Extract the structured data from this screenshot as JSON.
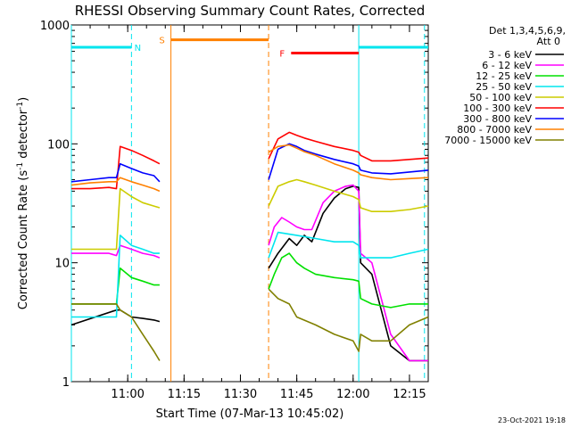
{
  "chart_data": {
    "type": "line",
    "title": "RHESSI Observing Summary Count Rates, Corrected",
    "xlabel": "Start Time (07-Mar-13 10:45:02)",
    "ylabel": "Corrected Count Rate (s⁻¹ detector⁻¹)",
    "ylabel_parts": [
      "Corrected Count Rate (s",
      "-1",
      " detector",
      "-1",
      ")"
    ],
    "y_scale": "log",
    "ylim": [
      1,
      1000
    ],
    "y_ticks": [
      {
        "value": 1,
        "label": "1"
      },
      {
        "value": 10,
        "label": "10"
      },
      {
        "value": 100,
        "label": "100"
      },
      {
        "value": 1000,
        "label": "1000"
      }
    ],
    "xlim_minutes": [
      0,
      95
    ],
    "x_ticks": [
      {
        "min": 15,
        "label": "11:00"
      },
      {
        "min": 30,
        "label": "11:15"
      },
      {
        "min": 45,
        "label": "11:30"
      },
      {
        "min": 60,
        "label": "11:45"
      },
      {
        "min": 75,
        "label": "12:00"
      },
      {
        "min": 90,
        "label": "12:15"
      }
    ],
    "legend": {
      "placement": "right",
      "header": [
        "Det 1,3,4,5,6,9,",
        "Att 0"
      ],
      "entries": [
        {
          "label": "3 - 6 keV",
          "color": "#000000"
        },
        {
          "label": "6 - 12 keV",
          "color": "#ff00ff"
        },
        {
          "label": "12 - 25 keV",
          "color": "#00e000"
        },
        {
          "label": "25 - 50 keV",
          "color": "#00e5ee"
        },
        {
          "label": "50 - 100 keV",
          "color": "#cccc00"
        },
        {
          "label": "100 - 300 keV",
          "color": "#ff0000"
        },
        {
          "label": "300 - 800 keV",
          "color": "#0000ff"
        },
        {
          "label": "800 - 7000 keV",
          "color": "#ff8000"
        },
        {
          "label": "7000 - 15000 keV",
          "color": "#808000"
        }
      ]
    },
    "state_bars": [
      {
        "label": "N",
        "color": "#00e5ee",
        "x_start_min": 0,
        "x_end_min": 16,
        "y": 650
      },
      {
        "label": "",
        "color": "#00e5ee",
        "x_start_min": 76.5,
        "x_end_min": 95,
        "y": 650
      },
      {
        "label": "S",
        "color": "#ff8000",
        "x_start_min": 26.5,
        "x_end_min": 52.5,
        "y": 750
      },
      {
        "label": "F",
        "color": "#ff0000",
        "x_start_min": 58.5,
        "x_end_min": 76.5,
        "y": 580
      }
    ],
    "event_lines": [
      {
        "min": 0,
        "color": "#00e5ee",
        "style": "solid"
      },
      {
        "min": 16,
        "color": "#00e5ee",
        "style": "dashed"
      },
      {
        "min": 26.5,
        "color": "#ff8000",
        "style": "solid"
      },
      {
        "min": 52.5,
        "color": "#ff8000",
        "style": "dashed"
      },
      {
        "min": 76.5,
        "color": "#00e5ee",
        "style": "solid"
      },
      {
        "min": 94,
        "color": "#00e5ee",
        "style": "dashed"
      }
    ],
    "gap_minutes": [
      23.5,
      52.5
    ],
    "series": [
      {
        "name": "3 - 6 keV",
        "color": "#000000",
        "x": [
          0,
          12,
          13,
          16,
          19,
          22,
          23.5,
          52.5,
          55,
          58,
          60,
          62,
          64,
          67,
          70,
          73,
          75,
          76.5,
          77,
          80,
          85,
          90,
          95
        ],
        "y": [
          3,
          4,
          4,
          3.5,
          3.4,
          3.3,
          3.2,
          9,
          12,
          16,
          14,
          17,
          15,
          26,
          35,
          42,
          44,
          43,
          10,
          8,
          2,
          1.5,
          1.5
        ]
      },
      {
        "name": "6 - 12 keV",
        "color": "#ff00ff",
        "x": [
          0,
          10,
          12,
          13,
          16,
          19,
          22,
          23.5,
          52.5,
          54,
          56,
          58,
          60,
          62,
          64,
          67,
          70,
          73,
          75,
          76.5,
          77,
          80,
          85,
          90,
          95
        ],
        "y": [
          12,
          12,
          11.5,
          14,
          13,
          12,
          11.5,
          11,
          14,
          20,
          24,
          22,
          20,
          19,
          19,
          32,
          40,
          44,
          45,
          40,
          12,
          10,
          2.5,
          1.5,
          1.5
        ]
      },
      {
        "name": "12 - 25 keV",
        "color": "#00e000",
        "x": [
          0,
          12,
          13,
          16,
          19,
          22,
          23.5,
          52.5,
          54,
          56,
          58,
          60,
          62,
          65,
          70,
          75,
          76.5,
          77,
          80,
          85,
          90,
          95
        ],
        "y": [
          4.5,
          4.5,
          9,
          7.5,
          7,
          6.5,
          6.5,
          6,
          8,
          11,
          12,
          10,
          9,
          8,
          7.5,
          7.2,
          7,
          5,
          4.5,
          4.2,
          4.5,
          4.5
        ]
      },
      {
        "name": "25 - 50 keV",
        "color": "#00e5ee",
        "x": [
          0,
          12,
          13,
          16,
          19,
          22,
          23.5,
          52.5,
          55,
          60,
          65,
          70,
          75,
          76.5,
          77,
          80,
          85,
          90,
          95
        ],
        "y": [
          3.5,
          3.5,
          17,
          14,
          13,
          12,
          12,
          11,
          18,
          17,
          16,
          15,
          15,
          14,
          11,
          11,
          11,
          12,
          13
        ]
      },
      {
        "name": "50 - 100 keV",
        "color": "#cccc00",
        "x": [
          0,
          12,
          13,
          16,
          19,
          22,
          23.5,
          52.5,
          55,
          58,
          60,
          62,
          65,
          70,
          75,
          76.5,
          77,
          80,
          85,
          90,
          95
        ],
        "y": [
          13,
          13,
          42,
          36,
          32,
          30,
          29,
          30,
          44,
          48,
          50,
          48,
          45,
          40,
          36,
          34,
          29,
          27,
          27,
          28,
          30
        ]
      },
      {
        "name": "100 - 300 keV",
        "color": "#ff0000",
        "x": [
          0,
          5,
          10,
          12,
          13,
          16,
          19,
          22,
          23.5,
          52.5,
          55,
          58,
          60,
          62,
          65,
          70,
          75,
          76.5,
          77,
          80,
          85,
          90,
          95
        ],
        "y": [
          42,
          42,
          43,
          42,
          95,
          88,
          80,
          72,
          68,
          75,
          110,
          125,
          118,
          112,
          105,
          95,
          88,
          85,
          80,
          72,
          72,
          74,
          76
        ]
      },
      {
        "name": "300 - 800 keV",
        "color": "#0000ff",
        "x": [
          0,
          5,
          10,
          12,
          13,
          16,
          19,
          22,
          23.5,
          52.5,
          55,
          58,
          60,
          62,
          65,
          70,
          75,
          76.5,
          77,
          80,
          85,
          90,
          95
        ],
        "y": [
          48,
          50,
          52,
          52,
          68,
          62,
          57,
          54,
          48,
          50,
          90,
          100,
          95,
          88,
          82,
          74,
          68,
          65,
          60,
          57,
          56,
          58,
          60
        ]
      },
      {
        "name": "800 - 7000 keV",
        "color": "#ff8000",
        "x": [
          0,
          5,
          10,
          12,
          13,
          16,
          19,
          22,
          23.5,
          52.5,
          55,
          58,
          60,
          62,
          65,
          70,
          75,
          76.5,
          77,
          80,
          85,
          90,
          95
        ],
        "y": [
          45,
          47,
          48,
          48,
          52,
          48,
          45,
          42,
          40,
          85,
          95,
          98,
          92,
          86,
          80,
          68,
          60,
          57,
          55,
          52,
          50,
          51,
          52
        ]
      },
      {
        "name": "7000 - 15000 keV",
        "color": "#808000",
        "x": [
          0,
          12,
          13,
          16,
          19,
          22,
          23.5,
          52.5,
          55,
          58,
          60,
          65,
          70,
          75,
          76.5,
          77,
          80,
          85,
          90,
          95
        ],
        "y": [
          4.5,
          4.5,
          4,
          3.5,
          2.5,
          1.8,
          1.5,
          6,
          5,
          4.5,
          3.5,
          3,
          2.5,
          2.2,
          1.8,
          2.5,
          2.2,
          2.2,
          3,
          3.5
        ]
      }
    ]
  },
  "footer": {
    "timestamp": "23-Oct-2021 19:18"
  }
}
